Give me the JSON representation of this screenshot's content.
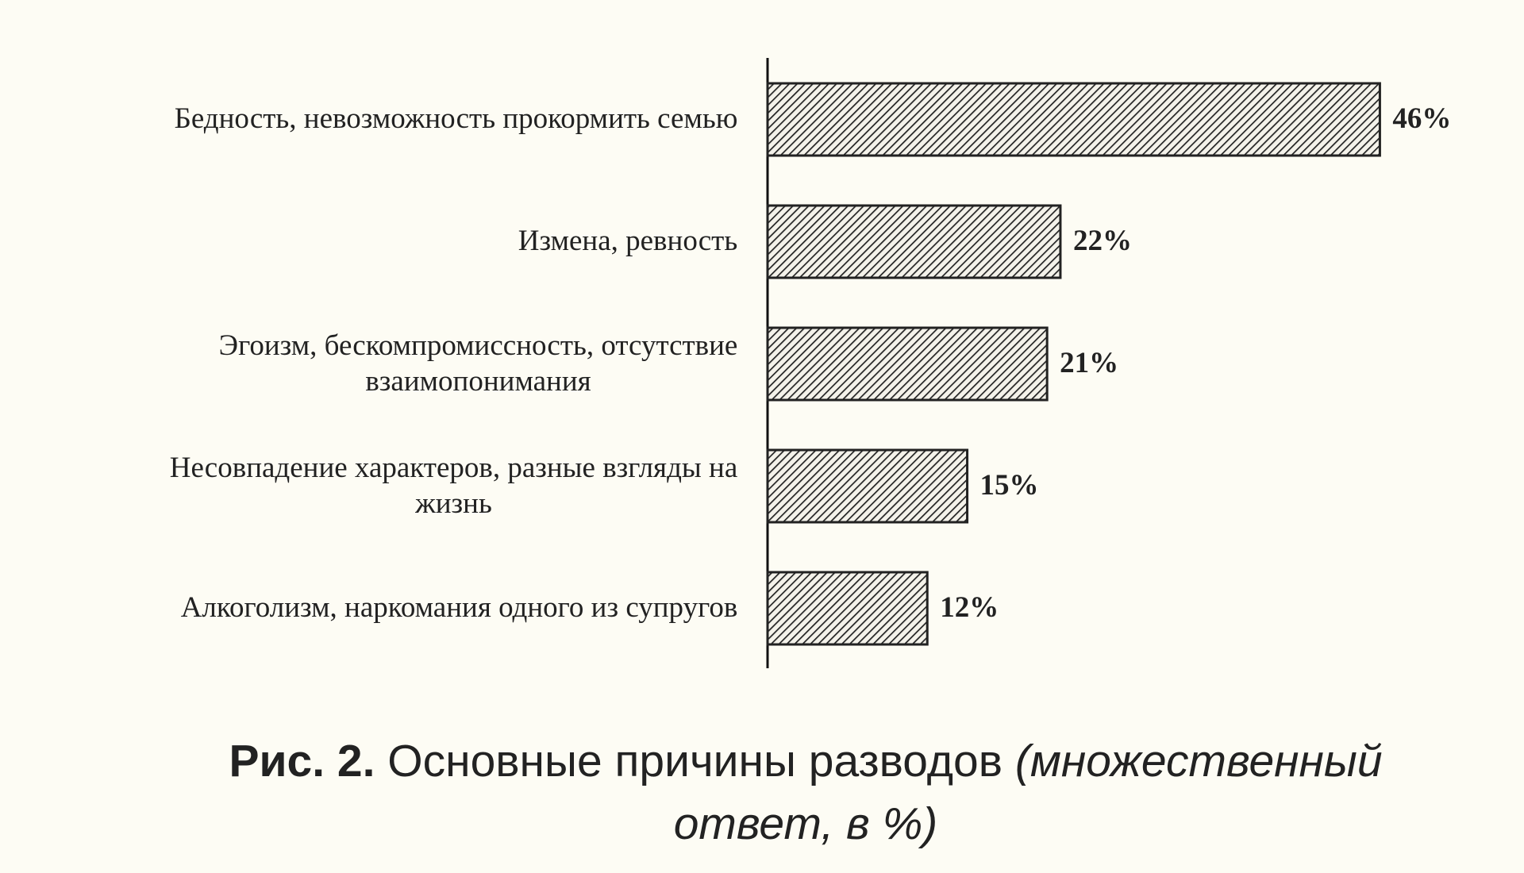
{
  "chart_data": {
    "type": "bar",
    "orientation": "horizontal",
    "categories": [
      "Бедность, невозможность прокормить семью",
      "Измена, ревность",
      "Эгоизм, бескомпромиссность, отсутствие взаимопонимания",
      "Несовпадение характеров, разные взгляды на жизнь",
      "Алкоголизм, наркомания одного из супругов"
    ],
    "values": [
      46,
      22,
      21,
      15,
      12
    ],
    "value_labels": [
      "46%",
      "22%",
      "21%",
      "15%",
      "12%"
    ],
    "color": "#222222",
    "hatch": true,
    "caption": {
      "label": "Рис. 2.",
      "text": "Основные причины разводов",
      "note": "(множественный ответ, в %)"
    }
  }
}
